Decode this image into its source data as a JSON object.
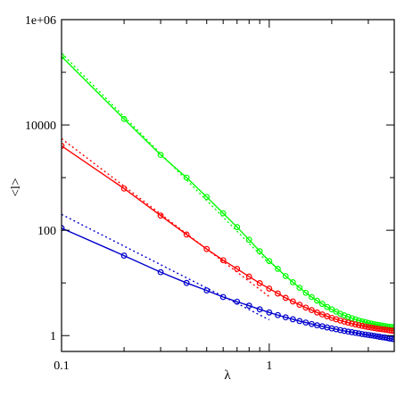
{
  "chart_data": {
    "type": "line",
    "xlabel": "λ",
    "ylabel": "<l>",
    "x_scale": "log",
    "y_scale": "log",
    "xlim": [
      0.1,
      4
    ],
    "ylim": [
      0.5,
      1000000
    ],
    "x_major_ticks": [
      0.1,
      1
    ],
    "x_tick_labels": [
      "0.1",
      "1"
    ],
    "y_major_ticks": [
      1,
      100,
      10000,
      1000000
    ],
    "y_tick_labels": [
      "1",
      "100",
      "10000",
      "1e+06"
    ],
    "grid": false,
    "legend": "none",
    "series": [
      {
        "color": "#00ff00",
        "style": "solid",
        "markers": "circle",
        "x": [
          0.1,
          0.2,
          0.3,
          0.4,
          0.5,
          0.6,
          0.7,
          0.8,
          0.9,
          1.0,
          1.1,
          1.2,
          1.3,
          1.4,
          1.5,
          1.6,
          1.7,
          1.8,
          1.9,
          2.0,
          2.1,
          2.2,
          2.3,
          2.4,
          2.5,
          2.6,
          2.7,
          2.8,
          2.9,
          3.0,
          3.1,
          3.2,
          3.3,
          3.4,
          3.5,
          3.6,
          3.7,
          3.8,
          3.9,
          4.0
        ],
        "y": [
          200000,
          13000,
          2700,
          1000,
          430,
          210,
          115,
          66,
          40,
          26,
          18.5,
          13.5,
          10.3,
          8.1,
          6.5,
          5.4,
          4.6,
          4.0,
          3.5,
          3.15,
          2.85,
          2.6,
          2.42,
          2.27,
          2.14,
          2.03,
          1.94,
          1.86,
          1.8,
          1.74,
          1.69,
          1.65,
          1.61,
          1.58,
          1.55,
          1.52,
          1.49,
          1.47,
          1.45,
          1.43
        ]
      },
      {
        "color": "#00ff00",
        "style": "dotted",
        "markers": "none",
        "x": [
          0.1,
          1.0
        ],
        "y": [
          230000,
          23
        ]
      },
      {
        "color": "#ff0000",
        "style": "solid",
        "markers": "circle",
        "x": [
          0.1,
          0.2,
          0.3,
          0.4,
          0.5,
          0.6,
          0.7,
          0.8,
          0.9,
          1.0,
          1.1,
          1.2,
          1.3,
          1.4,
          1.5,
          1.6,
          1.7,
          1.8,
          1.9,
          2.0,
          2.1,
          2.2,
          2.3,
          2.4,
          2.5,
          2.6,
          2.7,
          2.8,
          2.9,
          3.0,
          3.1,
          3.2,
          3.3,
          3.4,
          3.5,
          3.6,
          3.7,
          3.8,
          3.9,
          4.0
        ],
        "y": [
          4000,
          620,
          190,
          83,
          44,
          27,
          18.5,
          13.2,
          9.9,
          7.8,
          6.3,
          5.2,
          4.45,
          3.85,
          3.4,
          3.05,
          2.75,
          2.52,
          2.33,
          2.17,
          2.04,
          1.93,
          1.84,
          1.76,
          1.69,
          1.63,
          1.58,
          1.53,
          1.49,
          1.45,
          1.42,
          1.39,
          1.36,
          1.34,
          1.32,
          1.3,
          1.28,
          1.26,
          1.24,
          1.23
        ]
      },
      {
        "color": "#ff0000",
        "style": "dotted",
        "markers": "none",
        "x": [
          0.1,
          1.0
        ],
        "y": [
          5500,
          5.5
        ]
      },
      {
        "color": "#0000cc",
        "style": "solid",
        "markers": "circle",
        "x": [
          0.1,
          0.2,
          0.3,
          0.4,
          0.5,
          0.6,
          0.7,
          0.8,
          0.9,
          1.0,
          1.1,
          1.2,
          1.3,
          1.4,
          1.5,
          1.6,
          1.7,
          1.8,
          1.9,
          2.0,
          2.1,
          2.2,
          2.3,
          2.4,
          2.5,
          2.6,
          2.7,
          2.8,
          2.9,
          3.0,
          3.1,
          3.2,
          3.3,
          3.4,
          3.5,
          3.6,
          3.7,
          3.8,
          3.9,
          4.0
        ],
        "y": [
          110,
          33,
          16,
          10,
          7.2,
          5.4,
          4.4,
          3.7,
          3.15,
          2.75,
          2.45,
          2.22,
          2.04,
          1.89,
          1.77,
          1.66,
          1.57,
          1.5,
          1.43,
          1.37,
          1.32,
          1.27,
          1.23,
          1.19,
          1.16,
          1.13,
          1.1,
          1.07,
          1.05,
          1.03,
          1.01,
          0.99,
          0.97,
          0.95,
          0.93,
          0.92,
          0.9,
          0.88,
          0.87,
          0.85
        ]
      },
      {
        "color": "#0000cc",
        "style": "dotted",
        "markers": "none",
        "x": [
          0.1,
          1.0
        ],
        "y": [
          200,
          2
        ]
      }
    ]
  }
}
